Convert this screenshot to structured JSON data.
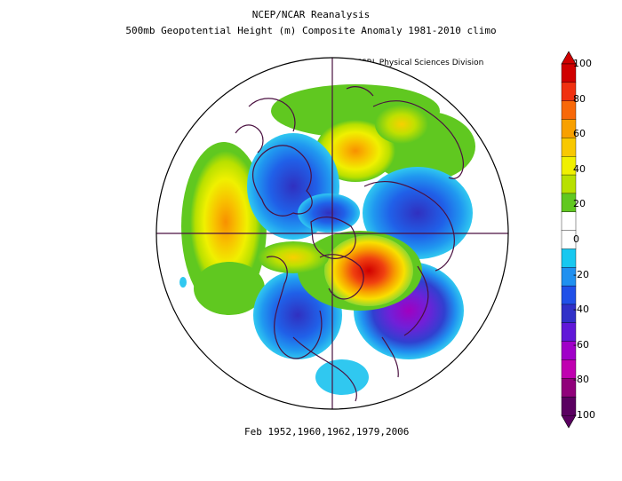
{
  "titles": {
    "line1": "NCEP/NCAR Reanalysis",
    "line2": "500mb Geopotential Height (m) Composite Anomaly 1981-2010 climo",
    "credit": "NOAA/ESRL Physical Sciences Division",
    "footer": "Feb 1952,1960,1962,1979,2006"
  },
  "colorbar": {
    "labels": [
      "100",
      "80",
      "60",
      "40",
      "20",
      "0",
      "-20",
      "-40",
      "-60",
      "-80",
      "-100"
    ],
    "colors": [
      "#d00000",
      "#f03010",
      "#f86808",
      "#f8a000",
      "#f8c800",
      "#f0f000",
      "#b8e000",
      "#60c820",
      "#ffffff",
      "#ffffff",
      "#18c8f0",
      "#2090f0",
      "#2050e8",
      "#3030c8",
      "#6018d8",
      "#a000c8",
      "#c000b0",
      "#90007a",
      "#5a0060"
    ]
  },
  "map": {
    "projection": "north-polar-stereographic",
    "variable": "500mb geopotential height anomaly"
  }
}
